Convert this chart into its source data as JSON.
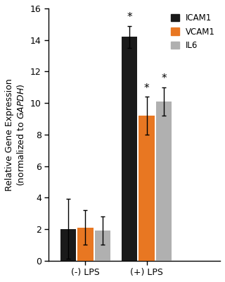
{
  "groups": [
    "(-) LPS",
    "(+) LPS"
  ],
  "series": [
    "ICAM1",
    "VCAM1",
    "IL6"
  ],
  "colors": [
    "#1a1a1a",
    "#E87722",
    "#B0B0B0"
  ],
  "values": [
    [
      2.0,
      2.1,
      1.9
    ],
    [
      14.2,
      9.2,
      10.1
    ]
  ],
  "errors": [
    [
      1.9,
      1.1,
      0.9
    ],
    [
      0.7,
      1.2,
      0.9
    ]
  ],
  "ylim": [
    0,
    16
  ],
  "yticks": [
    0,
    2,
    4,
    6,
    8,
    10,
    12,
    14,
    16
  ],
  "ylabel": "Relative Gene Expression\n(normalized to $\\it{GAPDH}$)",
  "bar_width": 0.13,
  "sig_labels": [
    [
      false,
      false,
      false
    ],
    [
      true,
      true,
      true
    ]
  ],
  "background_color": "#ffffff",
  "legend_labels": [
    "ICAM1",
    "VCAM1",
    "IL6"
  ]
}
